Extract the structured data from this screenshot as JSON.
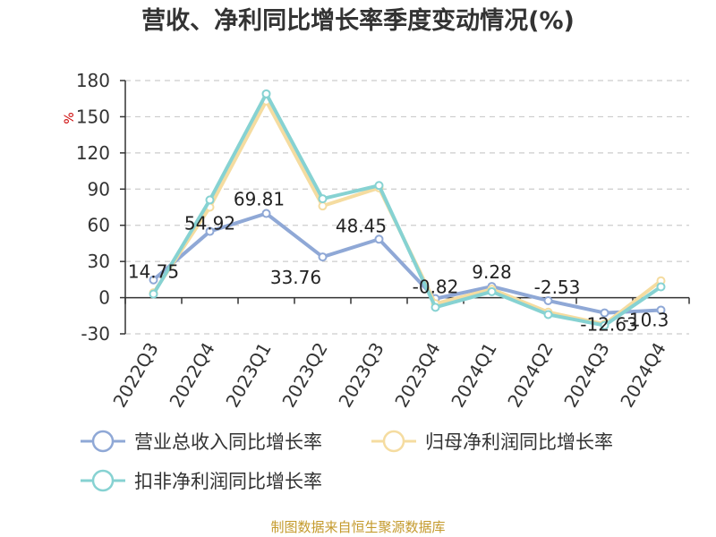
{
  "chart_data": {
    "type": "line",
    "title": "营收、净利同比增长率季度变动情况(%)",
    "ylabel": "%",
    "ylim": [
      -30,
      180
    ],
    "yticks": [
      -30,
      0,
      30,
      60,
      90,
      120,
      150,
      180
    ],
    "grid": true,
    "legend_position": "bottom",
    "categories": [
      "2022Q3",
      "2022Q4",
      "2023Q1",
      "2023Q2",
      "2023Q3",
      "2023Q4",
      "2024Q1",
      "2024Q2",
      "2024Q3",
      "2024Q4"
    ],
    "series": [
      {
        "name": "营业总收入同比增长率",
        "color": "#8fa8d6",
        "values": [
          14.75,
          54.92,
          69.81,
          33.76,
          48.45,
          -0.82,
          9.28,
          -2.53,
          -12.63,
          -10.3
        ],
        "labels": [
          "14.75",
          "54.92",
          "69.81",
          "33.76",
          "48.45",
          "-0.82",
          "9.28",
          "-2.53",
          "-12.63",
          "-10.3"
        ]
      },
      {
        "name": "归母净利润同比增长率",
        "color": "#f5dca0",
        "values": [
          4,
          75,
          163,
          76,
          91,
          -5,
          7,
          -12,
          -22,
          14
        ]
      },
      {
        "name": "扣非净利润同比增长率",
        "color": "#86d2d2",
        "values": [
          3,
          81,
          169,
          82,
          93,
          -8,
          5,
          -14,
          -23,
          9
        ]
      }
    ]
  },
  "source": "制图数据来自恒生聚源数据库"
}
